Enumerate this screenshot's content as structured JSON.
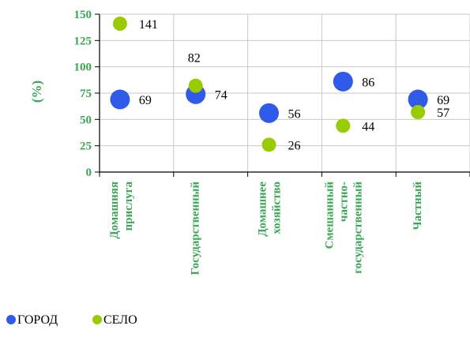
{
  "chart_data": {
    "type": "scatter",
    "ylabel": "(%)",
    "ylim": [
      0,
      150
    ],
    "yticks": [
      "0",
      "25",
      "50",
      "75",
      "100",
      "125",
      "150"
    ],
    "grid": true,
    "legend_position": "bottom-left",
    "categories": [
      [
        "Домашняя",
        "прислуга"
      ],
      [
        "Государственный"
      ],
      [
        "Домашнее",
        "хозяйство"
      ],
      [
        "Смешанный",
        "частно-",
        "государственный"
      ],
      [
        "Частный"
      ]
    ],
    "series": [
      {
        "name": "ГОРОД",
        "color": "#2f5be8",
        "values": [
          69,
          74,
          56,
          86,
          69
        ],
        "labels": [
          "69",
          "74",
          "56",
          "86",
          "69"
        ]
      },
      {
        "name": "СЕЛО",
        "color": "#99cc00",
        "values": [
          141,
          82,
          26,
          44,
          57
        ],
        "labels": [
          "141",
          "82",
          "26",
          "44",
          "57"
        ]
      }
    ]
  }
}
